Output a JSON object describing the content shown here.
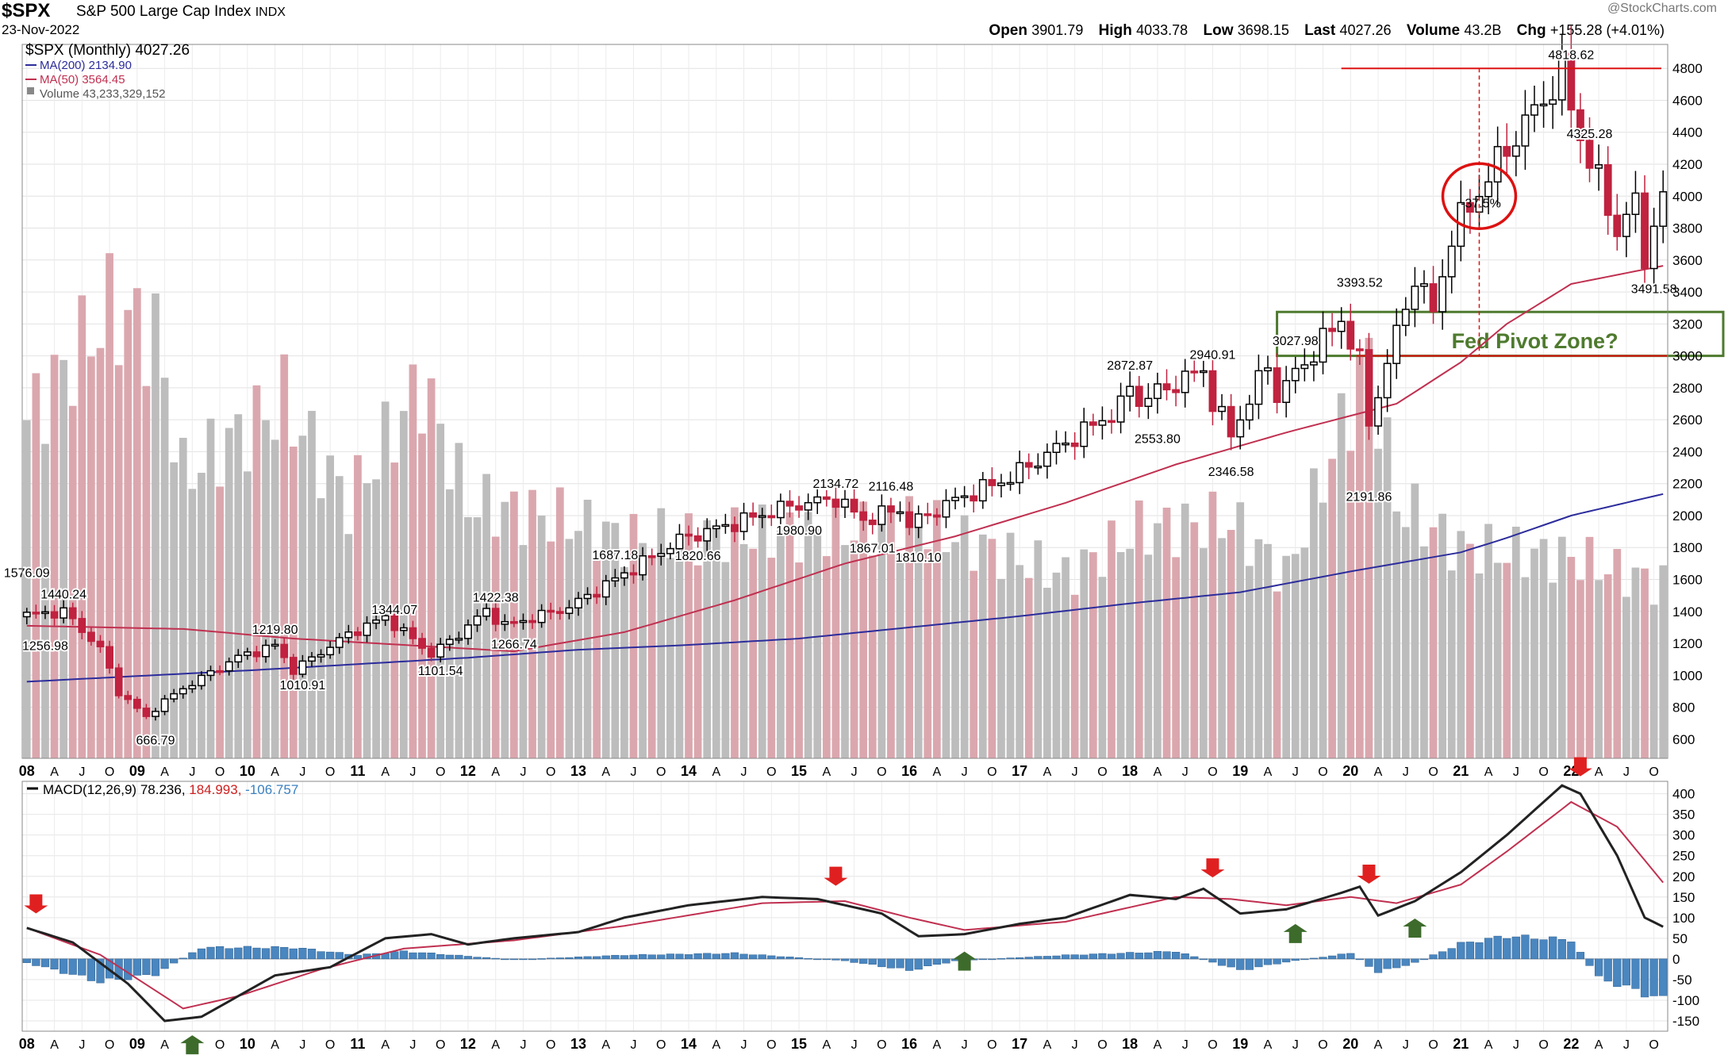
{
  "header": {
    "symbol": "$SPX",
    "name": "S&P 500 Large Cap Index",
    "exchange": "INDX",
    "date": "23-Nov-2022",
    "source": "@StockCharts.com",
    "open_label": "Open",
    "open": "3901.79",
    "high_label": "High",
    "high": "4033.78",
    "low_label": "Low",
    "low": "3698.15",
    "last_label": "Last",
    "last": "4027.26",
    "volume_label": "Volume",
    "volume": "43.2B",
    "chg_label": "Chg",
    "chg": "+155.28 (+4.01%)"
  },
  "legend": {
    "price": "$SPX (Monthly) 4027.26",
    "ma200": "MA(200) 2134.90",
    "ma50": "MA(50) 3564.45",
    "volume": "Volume 43,233,329,152"
  },
  "macd_legend": {
    "label": "MACD(12,26,9)",
    "macd": "78.236,",
    "signal": "184.993,",
    "hist": "-106.757"
  },
  "colors": {
    "up": "#000000",
    "down": "#c0223f",
    "ma200": "#2c2c9c",
    "ma50": "#c03050",
    "volume_up": "#bdbdbd",
    "volume_down": "#dba7ae",
    "hist": "#4a86bf",
    "arrow_sell": "#e02020",
    "arrow_buy": "#3d6b2b",
    "zone": "#4e7a2e",
    "highlight": "#dd1111"
  },
  "annotations": {
    "zone_label": "Fed Pivot Zone?",
    "circle_label": "-37.5%"
  },
  "x_axis": {
    "labels": [
      "08",
      "A",
      "J",
      "O",
      "09",
      "A",
      "J",
      "O",
      "10",
      "A",
      "J",
      "O",
      "11",
      "A",
      "J",
      "O",
      "12",
      "A",
      "J",
      "O",
      "13",
      "A",
      "J",
      "O",
      "14",
      "A",
      "J",
      "O",
      "15",
      "A",
      "J",
      "O",
      "16",
      "A",
      "J",
      "O",
      "17",
      "A",
      "J",
      "O",
      "18",
      "A",
      "J",
      "O",
      "19",
      "A",
      "J",
      "O",
      "20",
      "A",
      "J",
      "O",
      "21",
      "A",
      "J",
      "O",
      "22",
      "A",
      "J",
      "O"
    ],
    "bold": [
      "08",
      "09",
      "10",
      "11",
      "12",
      "13",
      "14",
      "15",
      "16",
      "17",
      "18",
      "19",
      "20",
      "21",
      "22"
    ]
  },
  "chart_data": [
    {
      "type": "candlestick",
      "title": "$SPX (Monthly)",
      "yticks": [
        600,
        800,
        1000,
        1200,
        1400,
        1600,
        1800,
        2000,
        2200,
        2400,
        2600,
        2800,
        3000,
        3200,
        3400,
        3600,
        3800,
        4000,
        4200,
        4400,
        4600,
        4800
      ],
      "ylim": [
        480,
        4950
      ],
      "x_range": [
        "2008-01",
        "2022-11"
      ],
      "monthly_closes_anchors": [
        [
          "2008-01",
          1378
        ],
        [
          "2008-05",
          1400
        ],
        [
          "2008-09",
          1166
        ],
        [
          "2008-11",
          896
        ],
        [
          "2009-02",
          735
        ],
        [
          "2009-03",
          797
        ],
        [
          "2009-06",
          919
        ],
        [
          "2009-12",
          1115
        ],
        [
          "2010-04",
          1187
        ],
        [
          "2010-06",
          1031
        ],
        [
          "2010-12",
          1258
        ],
        [
          "2011-04",
          1364
        ],
        [
          "2011-09",
          1131
        ],
        [
          "2011-12",
          1258
        ],
        [
          "2012-03",
          1408
        ],
        [
          "2012-05",
          1310
        ],
        [
          "2012-12",
          1426
        ],
        [
          "2013-12",
          1848
        ],
        [
          "2014-12",
          2059
        ],
        [
          "2015-05",
          2107
        ],
        [
          "2015-08",
          1972
        ],
        [
          "2015-12",
          2044
        ],
        [
          "2016-01",
          1940
        ],
        [
          "2016-06",
          2099
        ],
        [
          "2016-12",
          2239
        ],
        [
          "2017-12",
          2674
        ],
        [
          "2018-01",
          2824
        ],
        [
          "2018-02",
          2714
        ],
        [
          "2018-09",
          2914
        ],
        [
          "2018-10",
          2712
        ],
        [
          "2018-12",
          2507
        ],
        [
          "2019-04",
          2946
        ],
        [
          "2019-05",
          2752
        ],
        [
          "2019-12",
          3231
        ],
        [
          "2020-02",
          2954
        ],
        [
          "2020-03",
          2585
        ],
        [
          "2020-08",
          3500
        ],
        [
          "2020-10",
          3270
        ],
        [
          "2020-12",
          3756
        ],
        [
          "2021-06",
          4298
        ],
        [
          "2021-12",
          4766
        ],
        [
          "2022-02",
          4374
        ],
        [
          "2022-06",
          3785
        ],
        [
          "2022-08",
          3955
        ],
        [
          "2022-09",
          3586
        ],
        [
          "2022-10",
          3872
        ],
        [
          "2022-11",
          4027
        ]
      ],
      "labels": [
        {
          "text": "1576.09",
          "date": "2008-01",
          "v": 1576
        },
        {
          "text": "1440.24",
          "date": "2008-05",
          "v": 1440
        },
        {
          "text": "1256.98",
          "date": "2008-03",
          "v": 1257
        },
        {
          "text": "666.79",
          "date": "2009-03",
          "v": 667
        },
        {
          "text": "1219.80",
          "date": "2010-04",
          "v": 1220
        },
        {
          "text": "1010.91",
          "date": "2010-07",
          "v": 1011
        },
        {
          "text": "1344.07",
          "date": "2011-05",
          "v": 1344
        },
        {
          "text": "1101.54",
          "date": "2011-10",
          "v": 1102
        },
        {
          "text": "1422.38",
          "date": "2012-04",
          "v": 1422
        },
        {
          "text": "1266.74",
          "date": "2012-06",
          "v": 1267
        },
        {
          "text": "1687.18",
          "date": "2013-05",
          "v": 1687
        },
        {
          "text": "1820.66",
          "date": "2014-02",
          "v": 1821
        },
        {
          "text": "2134.72",
          "date": "2015-05",
          "v": 2135
        },
        {
          "text": "1980.90",
          "date": "2015-01",
          "v": 1981
        },
        {
          "text": "2116.48",
          "date": "2015-11",
          "v": 2116
        },
        {
          "text": "1867.01",
          "date": "2015-09",
          "v": 1867
        },
        {
          "text": "1810.10",
          "date": "2016-02",
          "v": 1810
        },
        {
          "text": "2872.87",
          "date": "2018-01",
          "v": 2873
        },
        {
          "text": "2553.80",
          "date": "2018-04",
          "v": 2554
        },
        {
          "text": "2940.91",
          "date": "2018-10",
          "v": 2941
        },
        {
          "text": "2346.58",
          "date": "2018-12",
          "v": 2347
        },
        {
          "text": "3027.98",
          "date": "2019-07",
          "v": 3028
        },
        {
          "text": "3393.52",
          "date": "2020-02",
          "v": 3394
        },
        {
          "text": "2191.86",
          "date": "2020-03",
          "v": 2192
        },
        {
          "text": "4818.62",
          "date": "2022-01",
          "v": 4819
        },
        {
          "text": "4325.28",
          "date": "2022-03",
          "v": 4325
        },
        {
          "text": "3491.58",
          "date": "2022-10",
          "v": 3492
        }
      ],
      "ma50_anchors": [
        [
          "2008-01",
          1310
        ],
        [
          "2009-06",
          1290
        ],
        [
          "2010-06",
          1230
        ],
        [
          "2012-06",
          1150
        ],
        [
          "2013-06",
          1270
        ],
        [
          "2014-06",
          1470
        ],
        [
          "2015-06",
          1700
        ],
        [
          "2016-06",
          1870
        ],
        [
          "2017-06",
          2080
        ],
        [
          "2018-06",
          2320
        ],
        [
          "2019-06",
          2520
        ],
        [
          "2020-06",
          2700
        ],
        [
          "2021-01",
          2960
        ],
        [
          "2021-06",
          3200
        ],
        [
          "2022-01",
          3450
        ],
        [
          "2022-11",
          3564
        ]
      ],
      "ma200_anchors": [
        [
          "2008-01",
          960
        ],
        [
          "2010-01",
          1030
        ],
        [
          "2012-01",
          1110
        ],
        [
          "2013-01",
          1160
        ],
        [
          "2014-01",
          1190
        ],
        [
          "2015-01",
          1230
        ],
        [
          "2016-01",
          1300
        ],
        [
          "2017-01",
          1370
        ],
        [
          "2018-01",
          1450
        ],
        [
          "2019-01",
          1520
        ],
        [
          "2020-01",
          1650
        ],
        [
          "2021-01",
          1770
        ],
        [
          "2021-06",
          1860
        ],
        [
          "2022-01",
          2000
        ],
        [
          "2022-11",
          2135
        ]
      ],
      "horizontal_level": 4800,
      "zone": {
        "from": 3000,
        "to": 3275
      }
    },
    {
      "type": "bar",
      "title": "Volume",
      "volume_anchors": [
        [
          "2008-01",
          0.74
        ],
        [
          "2008-10",
          0.98
        ],
        [
          "2009-03",
          0.93
        ],
        [
          "2009-06",
          0.62
        ],
        [
          "2010-05",
          0.78
        ],
        [
          "2010-12",
          0.56
        ],
        [
          "2011-08",
          0.82
        ],
        [
          "2012-01",
          0.56
        ],
        [
          "2012-12",
          0.52
        ],
        [
          "2013-06",
          0.48
        ],
        [
          "2015-08",
          0.5
        ],
        [
          "2016-01",
          0.52
        ],
        [
          "2017-06",
          0.4
        ],
        [
          "2018-02",
          0.5
        ],
        [
          "2018-12",
          0.52
        ],
        [
          "2019-06",
          0.4
        ],
        [
          "2020-03",
          0.88
        ],
        [
          "2020-06",
          0.56
        ],
        [
          "2021-01",
          0.46
        ],
        [
          "2022-01",
          0.44
        ],
        [
          "2022-11",
          0.38
        ]
      ]
    },
    {
      "type": "line",
      "title": "MACD(12,26,9)",
      "yticks": [
        -150,
        -100,
        -50,
        0,
        50,
        100,
        150,
        200,
        250,
        300,
        350,
        400
      ],
      "ylim": [
        -175,
        430
      ],
      "macd_anchors": [
        [
          "2008-01",
          75
        ],
        [
          "2008-06",
          40
        ],
        [
          "2008-12",
          -60
        ],
        [
          "2009-04",
          -150
        ],
        [
          "2009-08",
          -140
        ],
        [
          "2010-04",
          -40
        ],
        [
          "2010-10",
          -20
        ],
        [
          "2011-04",
          50
        ],
        [
          "2011-09",
          60
        ],
        [
          "2012-01",
          35
        ],
        [
          "2012-06",
          50
        ],
        [
          "2013-01",
          65
        ],
        [
          "2013-06",
          100
        ],
        [
          "2014-01",
          130
        ],
        [
          "2014-09",
          150
        ],
        [
          "2015-03",
          145
        ],
        [
          "2015-10",
          110
        ],
        [
          "2016-02",
          55
        ],
        [
          "2016-07",
          60
        ],
        [
          "2017-01",
          85
        ],
        [
          "2017-06",
          100
        ],
        [
          "2018-01",
          155
        ],
        [
          "2018-06",
          145
        ],
        [
          "2018-09",
          170
        ],
        [
          "2019-01",
          110
        ],
        [
          "2019-06",
          120
        ],
        [
          "2019-12",
          160
        ],
        [
          "2020-02",
          175
        ],
        [
          "2020-04",
          105
        ],
        [
          "2020-08",
          140
        ],
        [
          "2021-01",
          210
        ],
        [
          "2021-06",
          300
        ],
        [
          "2021-12",
          420
        ],
        [
          "2022-02",
          400
        ],
        [
          "2022-06",
          250
        ],
        [
          "2022-09",
          100
        ],
        [
          "2022-11",
          78
        ]
      ],
      "signal_anchors": [
        [
          "2008-01",
          75
        ],
        [
          "2008-09",
          10
        ],
        [
          "2009-06",
          -120
        ],
        [
          "2009-12",
          -90
        ],
        [
          "2010-09",
          -25
        ],
        [
          "2011-06",
          25
        ],
        [
          "2012-06",
          45
        ],
        [
          "2013-06",
          80
        ],
        [
          "2014-09",
          135
        ],
        [
          "2015-06",
          140
        ],
        [
          "2016-01",
          100
        ],
        [
          "2016-07",
          70
        ],
        [
          "2017-06",
          90
        ],
        [
          "2018-06",
          150
        ],
        [
          "2018-12",
          145
        ],
        [
          "2019-06",
          130
        ],
        [
          "2020-01",
          150
        ],
        [
          "2020-06",
          135
        ],
        [
          "2021-01",
          180
        ],
        [
          "2021-06",
          260
        ],
        [
          "2022-01",
          380
        ],
        [
          "2022-06",
          320
        ],
        [
          "2022-11",
          185
        ]
      ],
      "hist_anchors": [
        [
          "2008-01",
          -10
        ],
        [
          "2008-09",
          -60
        ],
        [
          "2009-03",
          -40
        ],
        [
          "2009-08",
          30
        ],
        [
          "2010-06",
          30
        ],
        [
          "2011-01",
          10
        ],
        [
          "2011-06",
          20
        ],
        [
          "2012-06",
          -2
        ],
        [
          "2013-06",
          10
        ],
        [
          "2014-06",
          15
        ],
        [
          "2015-06",
          -5
        ],
        [
          "2016-01",
          -30
        ],
        [
          "2016-06",
          -5
        ],
        [
          "2017-06",
          10
        ],
        [
          "2018-06",
          20
        ],
        [
          "2019-01",
          -30
        ],
        [
          "2019-06",
          -8
        ],
        [
          "2020-01",
          15
        ],
        [
          "2020-04",
          -35
        ],
        [
          "2020-08",
          -10
        ],
        [
          "2021-01",
          40
        ],
        [
          "2021-06",
          60
        ],
        [
          "2022-01",
          50
        ],
        [
          "2022-04",
          -50
        ],
        [
          "2022-11",
          -107
        ]
      ],
      "sell_arrows": [
        "2008-02",
        "2015-05",
        "2018-10",
        "2020-03",
        "2022-02"
      ],
      "buy_arrows": [
        "2009-07",
        "2016-07",
        "2019-07",
        "2020-08"
      ]
    }
  ]
}
